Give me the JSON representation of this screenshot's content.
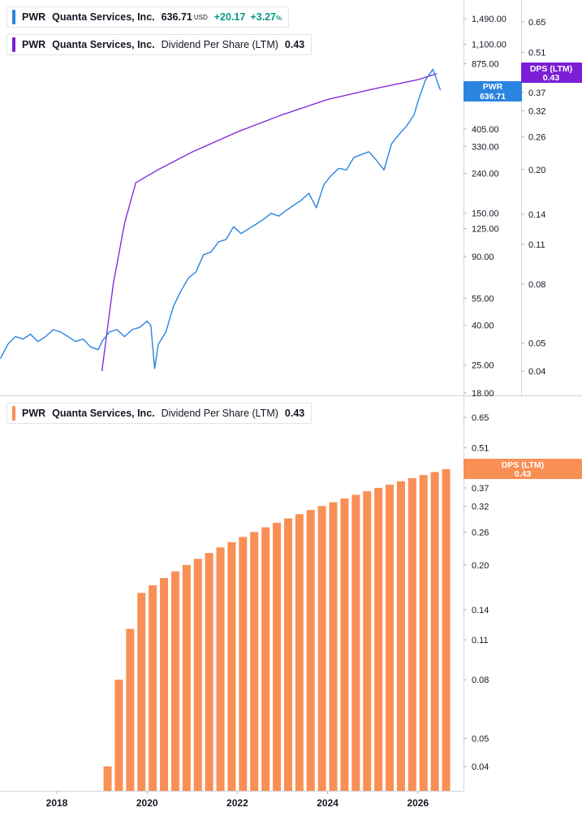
{
  "colors": {
    "price_line": "#2a84e0",
    "dps_line": "#7b1fd6",
    "dps_bars": "#f98f55",
    "positive": "#089981"
  },
  "legend_top": {
    "ticker": "PWR",
    "company": "Quanta Services, Inc.",
    "price": "636.71",
    "currency": "USD",
    "change": "+20.17",
    "change_pct": "+3.27",
    "pct_sign": "%"
  },
  "legend_dps_top": {
    "ticker": "PWR",
    "company": "Quanta Services, Inc.",
    "metric": "Dividend Per Share (LTM)",
    "value": "0.43"
  },
  "legend_dps_bottom": {
    "ticker": "PWR",
    "company": "Quanta Services, Inc.",
    "metric": "Dividend Per Share (LTM)",
    "value": "0.43"
  },
  "badges": {
    "price_ticker": "PWR",
    "price_value": "636.71",
    "dps_top_label": "DPS (LTM)",
    "dps_top_value": "0.43",
    "dps_bottom_label": "DPS (LTM)",
    "dps_bottom_value": "0.43"
  },
  "chart_data": [
    {
      "type": "line",
      "scale": "log",
      "price_axis_ticks": [
        "1,490.00",
        "1,100.00",
        "875.00",
        "405.00",
        "330.00",
        "240.00",
        "150.00",
        "125.00",
        "90.00",
        "55.00",
        "40.00",
        "25.00",
        "18.00"
      ],
      "dps_axis_ticks": [
        "0.65",
        "0.51",
        "0.37",
        "0.32",
        "0.26",
        "0.20",
        "0.14",
        "0.11",
        "0.08",
        "0.05",
        "0.04"
      ],
      "series": [
        {
          "axis": "price",
          "x": [
            "2016-10",
            "2016-12",
            "2017-02",
            "2017-04",
            "2017-06",
            "2017-08",
            "2017-10",
            "2017-12",
            "2018-02",
            "2018-04",
            "2018-06",
            "2018-08",
            "2018-10",
            "2018-12",
            "2019-01",
            "2019-03",
            "2019-05",
            "2019-07",
            "2019-09",
            "2019-11",
            "2020-01",
            "2020-02",
            "2020-03",
            "2020-04",
            "2020-06",
            "2020-08",
            "2020-10",
            "2020-12",
            "2021-02",
            "2021-04",
            "2021-06",
            "2021-08",
            "2021-10",
            "2021-12",
            "2022-02",
            "2022-04",
            "2022-06",
            "2022-08",
            "2022-10",
            "2022-12",
            "2023-02",
            "2023-04",
            "2023-06",
            "2023-08",
            "2023-10",
            "2023-12",
            "2024-02",
            "2024-04",
            "2024-06",
            "2024-08",
            "2024-10",
            "2024-12",
            "2025-02",
            "2025-04",
            "2025-06",
            "2025-08",
            "2025-10",
            "2025-12",
            "2026-01",
            "2026-03",
            "2026-05",
            "2026-07"
          ],
          "y": [
            27,
            32,
            35,
            34,
            36,
            33,
            35,
            38,
            37,
            35,
            33,
            34,
            31,
            30,
            33,
            37,
            38,
            35,
            38,
            39,
            42,
            40,
            24,
            32,
            37,
            50,
            60,
            70,
            75,
            92,
            95,
            107,
            110,
            128,
            118,
            125,
            132,
            140,
            150,
            145,
            155,
            165,
            175,
            190,
            160,
            210,
            235,
            255,
            250,
            290,
            300,
            310,
            280,
            250,
            340,
            380,
            420,
            480,
            560,
            720,
            820,
            640
          ]
        },
        {
          "axis": "dps",
          "x": [
            "2019-01",
            "2019-04",
            "2019-07",
            "2019-10",
            "2020-04",
            "2021-01",
            "2022-01",
            "2023-01",
            "2024-01",
            "2025-01",
            "2026-01",
            "2026-06"
          ],
          "y": [
            0.04,
            0.08,
            0.13,
            0.18,
            0.2,
            0.23,
            0.27,
            0.31,
            0.35,
            0.38,
            0.41,
            0.43
          ]
        }
      ]
    },
    {
      "type": "bar",
      "scale": "log",
      "axis_ticks": [
        "0.65",
        "0.51",
        "0.37",
        "0.32",
        "0.26",
        "0.20",
        "0.14",
        "0.11",
        "0.08",
        "0.05",
        "0.04"
      ],
      "x_ticks": [
        "2018",
        "2020",
        "2022",
        "2024",
        "2026"
      ],
      "categories": [
        "2019-Q1",
        "2019-Q2",
        "2019-Q3",
        "2019-Q4",
        "2020-Q1",
        "2020-Q2",
        "2020-Q3",
        "2020-Q4",
        "2021-Q1",
        "2021-Q2",
        "2021-Q3",
        "2021-Q4",
        "2022-Q1",
        "2022-Q2",
        "2022-Q3",
        "2022-Q4",
        "2023-Q1",
        "2023-Q2",
        "2023-Q3",
        "2023-Q4",
        "2024-Q1",
        "2024-Q2",
        "2024-Q3",
        "2024-Q4",
        "2025-Q1",
        "2025-Q2",
        "2025-Q3",
        "2025-Q4",
        "2026-Q1",
        "2026-Q2",
        "2026-Q3"
      ],
      "values": [
        0.04,
        0.08,
        0.12,
        0.16,
        0.17,
        0.18,
        0.19,
        0.2,
        0.21,
        0.22,
        0.23,
        0.24,
        0.25,
        0.26,
        0.27,
        0.28,
        0.29,
        0.3,
        0.31,
        0.32,
        0.33,
        0.34,
        0.35,
        0.36,
        0.37,
        0.38,
        0.39,
        0.4,
        0.41,
        0.42,
        0.43
      ]
    }
  ]
}
